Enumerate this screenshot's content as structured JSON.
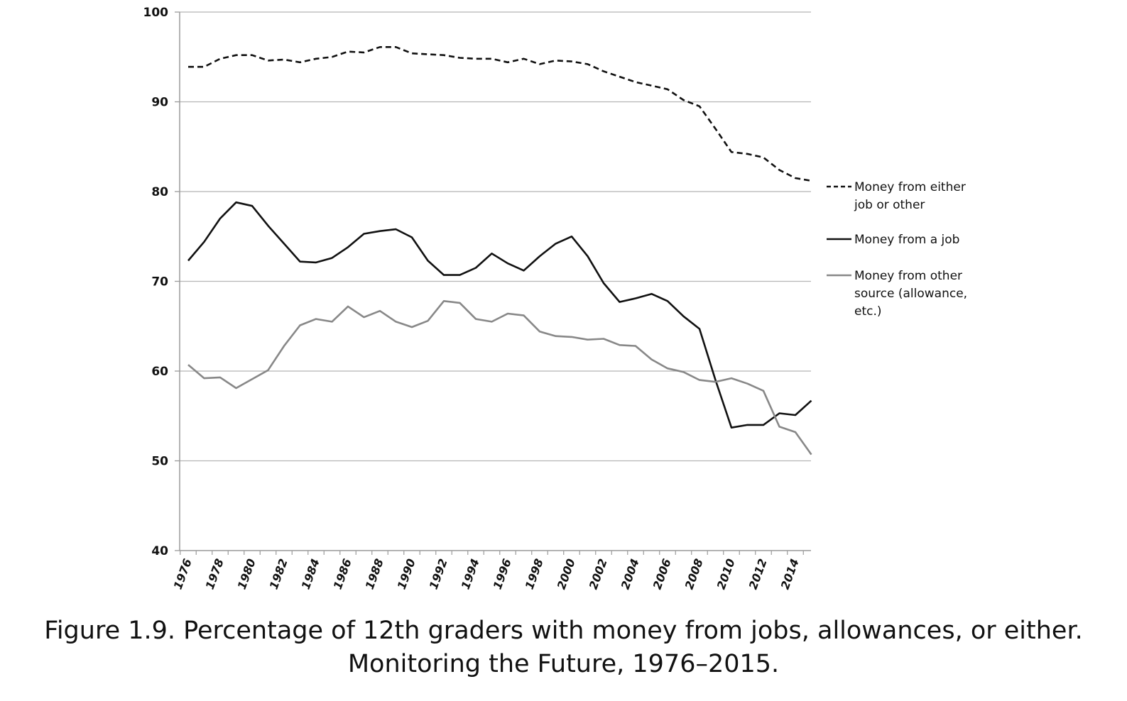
{
  "chart_data": {
    "type": "line",
    "x": [
      1976,
      1977,
      1978,
      1979,
      1980,
      1981,
      1982,
      1983,
      1984,
      1985,
      1986,
      1987,
      1988,
      1989,
      1990,
      1991,
      1992,
      1993,
      1994,
      1995,
      1996,
      1997,
      1998,
      1999,
      2000,
      2001,
      2002,
      2003,
      2004,
      2005,
      2006,
      2007,
      2008,
      2009,
      2010,
      2011,
      2012,
      2013,
      2014,
      2015
    ],
    "x_tick_labels": [
      "1976",
      "1978",
      "1980",
      "1982",
      "1984",
      "1986",
      "1988",
      "1990",
      "1992",
      "1994",
      "1996",
      "1998",
      "2000",
      "2002",
      "2004",
      "2006",
      "2008",
      "2010",
      "2012",
      "2014"
    ],
    "y_ticks": [
      40,
      50,
      60,
      70,
      80,
      90,
      100
    ],
    "ylim": [
      40,
      100
    ],
    "grid": true,
    "legend_position": "right",
    "series": [
      {
        "name": "Money from either job or other",
        "legend_lines": [
          "Money from either",
          "job or other"
        ],
        "style": "dashed",
        "color": "#111111",
        "values": [
          93.9,
          93.9,
          94.8,
          95.2,
          95.2,
          94.6,
          94.7,
          94.4,
          94.8,
          95.0,
          95.6,
          95.5,
          96.1,
          96.1,
          95.4,
          95.3,
          95.2,
          94.9,
          94.8,
          94.8,
          94.4,
          94.8,
          94.2,
          94.6,
          94.5,
          94.2,
          93.4,
          92.8,
          92.2,
          91.8,
          91.4,
          90.2,
          89.5,
          87.0,
          84.4,
          84.2,
          83.8,
          82.4,
          81.5,
          81.2
        ]
      },
      {
        "name": "Money from a job",
        "legend_lines": [
          "Money from a job"
        ],
        "style": "solid",
        "color": "#111111",
        "values": [
          72.3,
          74.4,
          77.0,
          78.8,
          78.4,
          76.2,
          74.2,
          72.2,
          72.1,
          72.6,
          73.8,
          75.3,
          75.6,
          75.8,
          74.9,
          72.3,
          70.7,
          70.7,
          71.5,
          73.1,
          72.0,
          71.2,
          72.8,
          74.2,
          75.0,
          72.8,
          69.8,
          67.7,
          68.1,
          68.6,
          67.8,
          66.1,
          64.7,
          59.0,
          53.7,
          54.0,
          54.0,
          55.3,
          55.1,
          56.7
        ]
      },
      {
        "name": "Money from other source (allowance, etc.)",
        "legend_lines": [
          "Money from other",
          "source (allowance,",
          "etc.)"
        ],
        "style": "solid",
        "color": "#888888",
        "values": [
          60.7,
          59.2,
          59.3,
          58.1,
          59.1,
          60.1,
          62.8,
          65.1,
          65.8,
          65.5,
          67.2,
          66.0,
          66.7,
          65.5,
          64.9,
          65.6,
          67.8,
          67.6,
          65.8,
          65.5,
          66.4,
          66.2,
          64.4,
          63.9,
          63.8,
          63.5,
          63.6,
          62.9,
          62.8,
          61.3,
          60.3,
          59.9,
          59.0,
          58.8,
          59.2,
          58.6,
          57.8,
          53.8,
          53.2,
          50.7
        ]
      }
    ]
  },
  "caption": {
    "line1": "Figure 1.9. Percentage of 12th graders with money from jobs, allowances, or either.",
    "line2": "Monitoring the Future, 1976–2015."
  }
}
